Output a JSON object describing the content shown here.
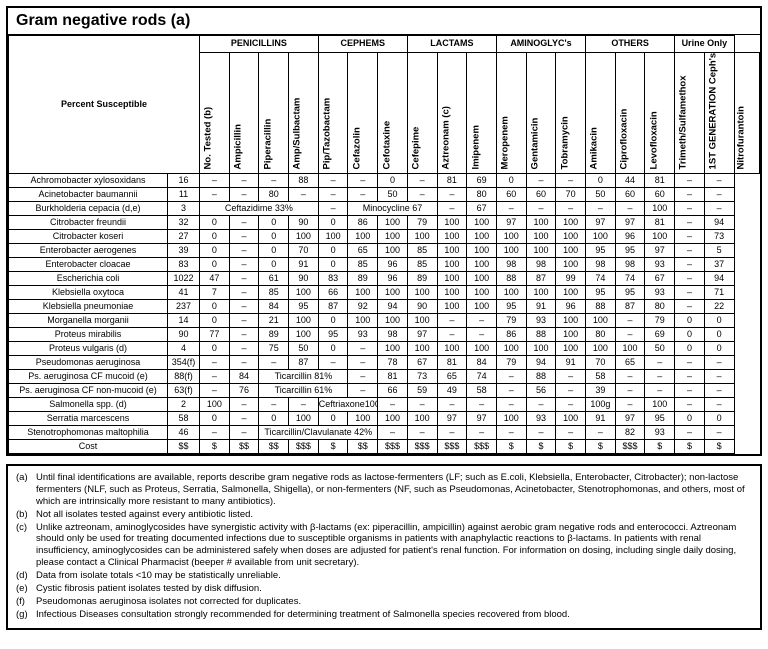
{
  "title": "Gram negative rods (a)",
  "percentLabel": "Percent Susceptible",
  "groups": [
    {
      "label": "PENICILLINS",
      "span": 4
    },
    {
      "label": "CEPHEMS",
      "span": 3
    },
    {
      "label": "LACTAMS",
      "span": 3
    },
    {
      "label": "AMINOGLYC's",
      "span": 3
    },
    {
      "label": "OTHERS",
      "span": 3
    },
    {
      "label": "Urine Only",
      "span": 2
    }
  ],
  "colHeads": [
    "No. Tested (b)",
    "Ampicillin",
    "Piperacillin",
    "Amp/Sulbactam",
    "Pip/Tazobactam",
    "Cefazolin",
    "Cefotaxine",
    "Cefepime",
    "Aztreonam (c)",
    "Imipenem",
    "Meropenem",
    "Gentamicin",
    "Tobramycin",
    "Amikacin",
    "Ciprofloxacin",
    "Levofloxacin",
    "Trimeth/Sulfamethox",
    "1ST GENERATION Ceph's [oral]",
    "Nitrofurantoin"
  ],
  "rows": [
    {
      "name": "Achromobacter xylosoxidans",
      "cells": [
        "16",
        "–",
        "–",
        "–",
        "88",
        "–",
        "–",
        "0",
        "–",
        "81",
        "69",
        "0",
        "–",
        "–",
        "0",
        "44",
        "81",
        "–",
        "–"
      ]
    },
    {
      "name": "Acinetobacter baumannii",
      "cells": [
        "11",
        "–",
        "–",
        "80",
        "–",
        "–",
        "–",
        "50",
        "–",
        "–",
        "80",
        "60",
        "60",
        "70",
        "50",
        "60",
        "60",
        "–",
        "–"
      ]
    },
    {
      "name": "Burkholderia cepacia (d,e)",
      "cells": [
        "3",
        {
          "text": "Ceftazidime 33%",
          "span": 4
        },
        "–",
        {
          "text": "Minocycline 67",
          "span": 3
        },
        "–",
        "67",
        "–",
        "–",
        "–",
        "–",
        "–",
        "100",
        "–",
        "–"
      ]
    },
    {
      "name": "Citrobacter freundii",
      "cells": [
        "32",
        "0",
        "–",
        "0",
        "90",
        "0",
        "86",
        "100",
        "79",
        "100",
        "100",
        "97",
        "100",
        "100",
        "97",
        "97",
        "81",
        "–",
        "94"
      ]
    },
    {
      "name": "Citrobacter koseri",
      "cells": [
        "27",
        "0",
        "–",
        "0",
        "100",
        "100",
        "100",
        "100",
        "100",
        "100",
        "100",
        "100",
        "100",
        "100",
        "100",
        "96",
        "100",
        "–",
        "73"
      ]
    },
    {
      "name": "Enterobacter aerogenes",
      "cells": [
        "39",
        "0",
        "–",
        "0",
        "70",
        "0",
        "65",
        "100",
        "85",
        "100",
        "100",
        "100",
        "100",
        "100",
        "95",
        "95",
        "97",
        "–",
        "5"
      ]
    },
    {
      "name": "Enterobacter cloacae",
      "cells": [
        "83",
        "0",
        "–",
        "0",
        "91",
        "0",
        "85",
        "96",
        "85",
        "100",
        "100",
        "98",
        "98",
        "100",
        "98",
        "98",
        "93",
        "–",
        "37"
      ]
    },
    {
      "name": "Escherichia coli",
      "cells": [
        "1022",
        "47",
        "–",
        "61",
        "90",
        "83",
        "89",
        "96",
        "89",
        "100",
        "100",
        "88",
        "87",
        "99",
        "74",
        "74",
        "67",
        "–",
        "94"
      ]
    },
    {
      "name": "Klebsiella oxytoca",
      "cells": [
        "41",
        "7",
        "–",
        "85",
        "100",
        "66",
        "100",
        "100",
        "100",
        "100",
        "100",
        "100",
        "100",
        "100",
        "95",
        "95",
        "93",
        "–",
        "71"
      ]
    },
    {
      "name": "Klebsiella pneumoniae",
      "cells": [
        "237",
        "0",
        "–",
        "84",
        "95",
        "87",
        "92",
        "94",
        "90",
        "100",
        "100",
        "95",
        "91",
        "96",
        "88",
        "87",
        "80",
        "–",
        "22"
      ]
    },
    {
      "name": "Morganella morganii",
      "cells": [
        "14",
        "0",
        "–",
        "21",
        "100",
        "0",
        "100",
        "100",
        "100",
        "–",
        "–",
        "79",
        "93",
        "100",
        "100",
        "–",
        "79",
        "0",
        "0"
      ]
    },
    {
      "name": "Proteus mirabilis",
      "cells": [
        "90",
        "77",
        "–",
        "89",
        "100",
        "95",
        "93",
        "98",
        "97",
        "–",
        "–",
        "86",
        "88",
        "100",
        "80",
        "–",
        "69",
        "0",
        "0"
      ]
    },
    {
      "name": "Proteus vulgaris (d)",
      "cells": [
        "4",
        "0",
        "–",
        "75",
        "50",
        "0",
        "–",
        "100",
        "100",
        "100",
        "100",
        "100",
        "100",
        "100",
        "100",
        "100",
        "50",
        "0",
        "0"
      ]
    },
    {
      "name": "Pseudomonas aeruginosa",
      "cells": [
        "354(f)",
        "–",
        "–",
        "–",
        "87",
        "–",
        "–",
        "78",
        "67",
        "81",
        "84",
        "79",
        "94",
        "91",
        "70",
        "65",
        "–",
        "–",
        "–"
      ]
    },
    {
      "name": "Ps. aeruginosa CF mucoid (e)",
      "cells": [
        "88(f)",
        "–",
        "84",
        {
          "text": "Ticarcillin 81%",
          "span": 3
        },
        "–",
        "81",
        "73",
        "65",
        "74",
        "–",
        "88",
        "–",
        "58",
        "–",
        "–",
        "–",
        "–"
      ]
    },
    {
      "name": "Ps. aeruginosa CF non-mucoid (e)",
      "cells": [
        "63(f)",
        "–",
        "76",
        {
          "text": "Ticarcillin 61%",
          "span": 3
        },
        "–",
        "66",
        "59",
        "49",
        "58",
        "–",
        "56",
        "–",
        "39",
        "–",
        "–",
        "–",
        "–"
      ]
    },
    {
      "name": "Salmonella spp. (d)",
      "cells": [
        "2",
        "100",
        "–",
        "–",
        "–",
        {
          "text": "Ceftriaxone100%",
          "span": 2
        },
        "–",
        "–",
        "–",
        "–",
        "–",
        "–",
        "–",
        "100g",
        "–",
        "100",
        "–",
        "–"
      ]
    },
    {
      "name": "Serratia marcescens",
      "cells": [
        "58",
        "0",
        "–",
        "0",
        "100",
        "0",
        "100",
        "100",
        "100",
        "97",
        "97",
        "100",
        "93",
        "100",
        "91",
        "97",
        "95",
        "0",
        "0"
      ]
    },
    {
      "name": "Stenotrophomonas maltophilia",
      "cells": [
        "46",
        "–",
        "–",
        {
          "text": "Ticarcillin/Clavulanate 42%",
          "span": 4
        },
        "–",
        "–",
        "–",
        "–",
        "–",
        "–",
        "–",
        "–",
        "82",
        "93",
        "–",
        "–"
      ]
    },
    {
      "name": "Cost",
      "cells": [
        "$$",
        "$",
        "$$",
        "$$",
        "$$$",
        "$",
        "$$",
        "$$$",
        "$$$",
        "$$$",
        "$$$",
        "$",
        "$",
        "$",
        "$",
        "$$$",
        "$",
        "$",
        "$"
      ]
    }
  ],
  "footnotes": [
    {
      "tag": "(a)",
      "text": "Until final identifications are available, reports describe gram negative rods as lactose-fermenters (LF; such as E.coli, Klebsiella, Enterobacter, Citrobacter); non-lactose fermenters (NLF, such as Proteus, Serratia, Salmonella, Shigella), or non-fermenters (NF, such as Pseudomonas, Acinetobacter, Stenotrophomonas, and others, most of which are intrinsically more resistant to many antibiotics)."
    },
    {
      "tag": "(b)",
      "text": "Not all isolates tested against every antibiotic listed."
    },
    {
      "tag": "(c)",
      "text": "Unlike aztreonam, aminoglycosides have synergistic activity with β-lactams (ex: piperacillin, ampicillin) against aerobic gram negative rods and enterococci.  Aztreonam should only be used for treating documented infections due to susceptible organisms in patients with anaphylactic reactions to β-lactams.  In patients with renal insufficiency, aminoglycosides can be administered safely when doses are adjusted for patient's renal function.  For information on dosing, including single daily dosing, please contact a Clinical Pharmacist (beeper # available from unit secretary)."
    },
    {
      "tag": "(d)",
      "text": "Data from isolate totals <10 may be statistically unreliable."
    },
    {
      "tag": "(e)",
      "text": "Cystic fibrosis patient isolates tested by disk diffusion."
    },
    {
      "tag": "(f)",
      "text": "Pseudomonas aeruginosa isolates not corrected for duplicates."
    },
    {
      "tag": "(g)",
      "text": "Infectious Diseases consultation strongly recommended for determining treatment of Salmonella species recovered from blood."
    }
  ]
}
